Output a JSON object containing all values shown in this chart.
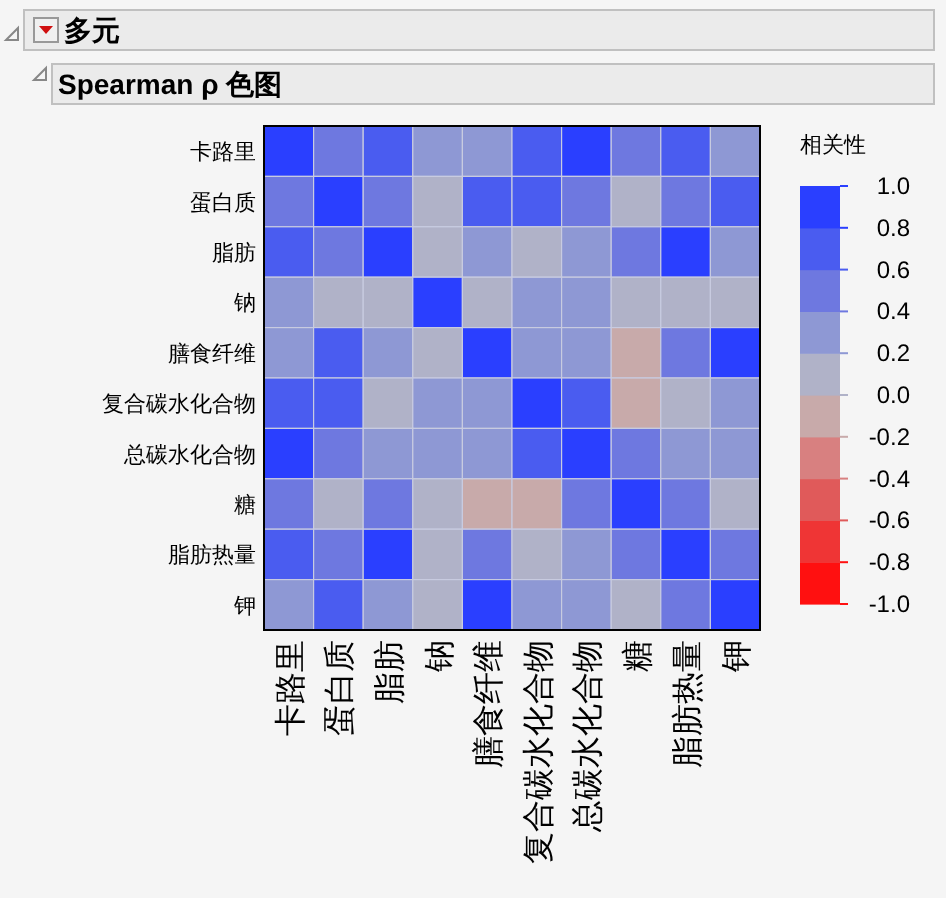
{
  "chart_data": {
    "type": "heatmap",
    "title": "多元",
    "subtitle": "Spearman ρ 色图",
    "clabel": "相关性",
    "categories": [
      "卡路里",
      "蛋白质",
      "脂肪",
      "钠",
      "膳食纤维",
      "复合碳水化合物",
      "总碳水化合物",
      "糖",
      "脂肪热量",
      "钾"
    ],
    "y_categories": [
      "卡路里",
      "蛋白质",
      "脂肪",
      "钠",
      "膳食纤维",
      "复合碳水化合物",
      "总碳水化合物",
      "糖",
      "脂肪热量",
      "钾"
    ],
    "cells": [
      [
        1,
        0.5,
        0.7,
        0.3,
        0.3,
        0.7,
        0.9,
        0.5,
        0.7,
        0.3
      ],
      [
        0.5,
        1,
        0.5,
        0.1,
        0.7,
        0.7,
        0.5,
        0.1,
        0.5,
        0.7
      ],
      [
        0.7,
        0.5,
        1,
        0.1,
        0.3,
        0.1,
        0.3,
        0.5,
        0.9,
        0.3
      ],
      [
        0.3,
        0.1,
        0.1,
        1,
        0.1,
        0.3,
        0.3,
        0.1,
        0.1,
        0.1
      ],
      [
        0.3,
        0.7,
        0.3,
        0.1,
        1,
        0.3,
        0.3,
        -0.1,
        0.5,
        0.9
      ],
      [
        0.7,
        0.7,
        0.1,
        0.3,
        0.3,
        1,
        0.7,
        -0.1,
        0.1,
        0.3
      ],
      [
        0.9,
        0.5,
        0.3,
        0.3,
        0.3,
        0.7,
        1,
        0.5,
        0.3,
        0.3
      ],
      [
        0.5,
        0.1,
        0.5,
        0.1,
        -0.1,
        -0.1,
        0.5,
        1,
        0.5,
        0.1
      ],
      [
        0.7,
        0.5,
        0.9,
        0.1,
        0.5,
        0.1,
        0.3,
        0.5,
        1,
        0.5
      ],
      [
        0.3,
        0.7,
        0.3,
        0.1,
        0.9,
        0.3,
        0.3,
        0.1,
        0.5,
        1
      ]
    ],
    "clim": [
      -1,
      1
    ],
    "cticks": [
      {
        "value": 1,
        "label": "1.0"
      },
      {
        "value": 0.8,
        "label": "0.8"
      },
      {
        "value": 0.6,
        "label": "0.6"
      },
      {
        "value": 0.4,
        "label": "0.4"
      },
      {
        "value": 0.2,
        "label": "0.2"
      },
      {
        "value": 0,
        "label": "0.0"
      },
      {
        "value": -0.2,
        "label": "-0.2"
      },
      {
        "value": -0.4,
        "label": "-0.4"
      },
      {
        "value": -0.6,
        "label": "-0.6"
      },
      {
        "value": -0.8,
        "label": "-0.8"
      },
      {
        "value": -1,
        "label": "-1.0"
      }
    ]
  }
}
